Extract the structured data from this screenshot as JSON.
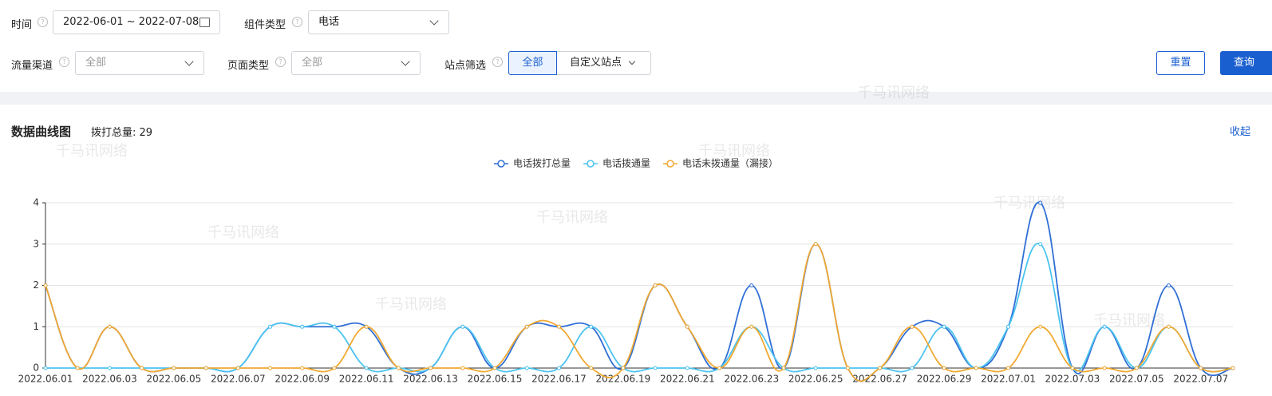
{
  "filters": {
    "time": {
      "label": "时间",
      "value": "2022-06-01 ~ 2022-07-08"
    },
    "component": {
      "label": "组件类型",
      "value": "电话"
    },
    "channel": {
      "label": "流量渠道",
      "value": "全部"
    },
    "page_type": {
      "label": "页面类型",
      "value": "全部"
    },
    "site": {
      "label": "站点筛选",
      "options": [
        "全部",
        "自定义站点"
      ]
    },
    "buttons": [
      "重置",
      "查询"
    ]
  },
  "section": {
    "title": "数据曲线图",
    "summary": "拨打总量: 29",
    "collapse": "收起"
  },
  "watermark": "千马讯网络",
  "chart_data": {
    "type": "line",
    "categories": [
      "2022.06.01",
      null,
      "2022.06.03",
      null,
      "2022.06.05",
      null,
      "2022.06.07",
      null,
      "2022.06.09",
      null,
      "2022.06.11",
      null,
      "2022.06.13",
      null,
      "2022.06.15",
      null,
      "2022.06.17",
      null,
      "2022.06.19",
      null,
      "2022.06.21",
      null,
      "2022.06.23",
      null,
      "2022.06.25",
      null,
      "2022.06.27",
      null,
      "2022.06.29",
      null,
      "2022.07.01",
      null,
      "2022.07.03",
      null,
      "2022.07.05",
      null,
      "2022.07.07",
      null
    ],
    "series": [
      {
        "name": "电话拨打总量",
        "color": "#2f6fd6",
        "values": [
          2,
          0,
          1,
          0,
          0,
          0,
          0,
          1,
          1,
          1,
          1,
          0,
          0,
          1,
          0,
          1,
          1,
          1,
          0,
          2,
          1,
          0,
          2,
          0,
          3,
          0,
          0,
          1,
          1,
          0,
          1,
          4,
          0,
          1,
          0,
          2,
          0,
          0
        ]
      },
      {
        "name": "电话拨通量",
        "color": "#4cc3f0",
        "values": [
          0,
          0,
          0,
          0,
          0,
          0,
          0,
          1,
          1,
          1,
          0,
          0,
          0,
          1,
          0,
          0,
          0,
          1,
          0,
          0,
          0,
          0,
          1,
          0,
          0,
          0,
          0,
          0,
          1,
          0,
          1,
          3,
          0,
          1,
          0,
          1,
          0,
          0
        ]
      },
      {
        "name": "电话未拨通量（漏接）",
        "color": "#f0a830",
        "values": [
          2,
          0,
          1,
          0,
          0,
          0,
          0,
          0,
          0,
          0,
          1,
          0,
          0,
          0,
          0,
          1,
          1,
          0,
          0,
          2,
          1,
          0,
          1,
          0,
          3,
          0,
          0,
          1,
          0,
          0,
          0,
          1,
          0,
          0,
          0,
          1,
          0,
          0
        ]
      }
    ],
    "ylim": [
      0,
      4
    ],
    "yticks": [
      0,
      1,
      2,
      3,
      4
    ],
    "grid": true
  }
}
